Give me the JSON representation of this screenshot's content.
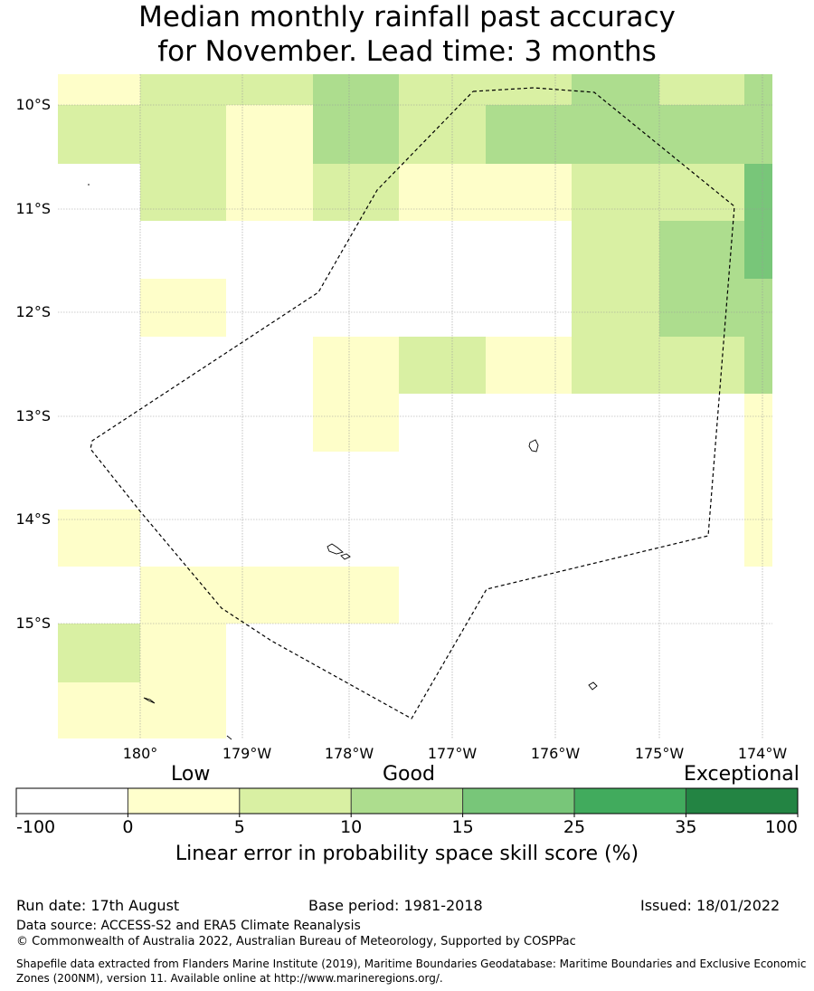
{
  "title": {
    "line1": "Median monthly rainfall past accuracy",
    "line2": "for November. Lead time: 3 months"
  },
  "map": {
    "lat_labels": [
      "10°S",
      "11°S",
      "12°S",
      "13°S",
      "14°S",
      "15°S"
    ],
    "lon_labels": [
      "180°",
      "179°W",
      "178°W",
      "177°W",
      "176°W",
      "175°W",
      "174°W"
    ],
    "category_colors": {
      "white": "#ffffff",
      "low": "#fefec9",
      "good5": "#d9f0a3",
      "good10": "#addd8e",
      "good15": "#78c679"
    }
  },
  "colorbar": {
    "category_words": [
      "Low",
      "Good",
      "Exceptional"
    ],
    "tick_labels": [
      "-100",
      "0",
      "5",
      "10",
      "15",
      "25",
      "35",
      "100"
    ],
    "colors": [
      "#ffffff",
      "#ffffcc",
      "#d9f0a3",
      "#addd8e",
      "#78c679",
      "#41ab5d",
      "#238443"
    ],
    "label": "Linear error in probability space skill score (%)"
  },
  "footer": {
    "run_date": "Run date: 17th August",
    "base_period": "Base period: 1981-2018",
    "issued": "Issued: 18/01/2022",
    "data_source": "Data source: ACCESS-S2 and ERA5 Climate Reanalysis",
    "copyright": "© Commonwealth of Australia 2022, Australian Bureau of Meteorology, Supported by COSPPac",
    "shapefile": "Shapefile data extracted from Flanders Marine Institute (2019), Maritime Boundaries Geodatabase: Maritime Boundaries and Exclusive Economic Zones (200NM), version 11. Available online at http://www.marineregions.org/."
  }
}
